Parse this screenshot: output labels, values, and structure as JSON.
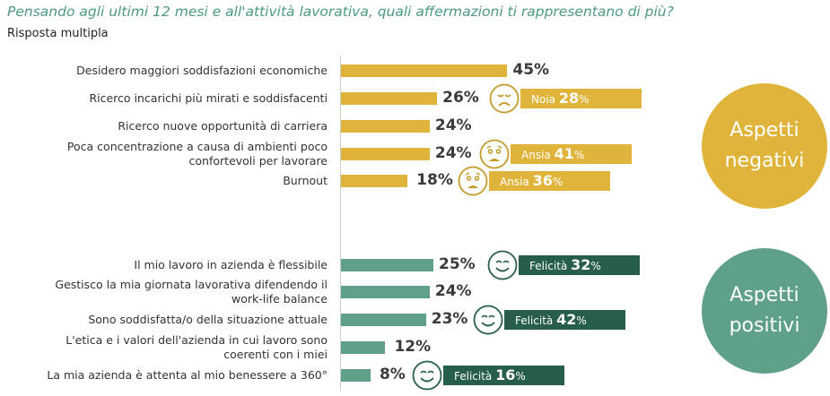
{
  "header": {
    "title": "Pensando agli ultimi 12 mesi e all'attività lavorativa, quali affermazioni ti rappresentano di più?",
    "subtitle": "Risposta multipla"
  },
  "colors": {
    "negative": "#E0B43A",
    "positive": "#5FA088",
    "positive_badge": "#265E4A",
    "title": "#4C9A80"
  },
  "groups": {
    "negative": "Aspetti\nnegativi",
    "positive": "Aspetti\npositivi"
  },
  "chart_data": {
    "type": "bar",
    "orientation": "horizontal",
    "xlim": [
      0,
      45
    ],
    "categories": [
      "Desidero maggiori soddisfazioni economiche",
      "Ricerco incarichi più mirati e soddisfacenti",
      "Ricerco nuove opportunità di carriera",
      "Poca concentrazione a causa di ambienti poco confortevoli per lavorare",
      "Burnout",
      "Il mio lavoro in azienda è flessibile",
      "Gestisco la mia giornata lavorativa difendendo il work-life balance",
      "Sono soddisfatta/o della situazione attuale",
      "L'etica e i valori dell'azienda in cui lavoro sono coerenti con i miei",
      "La mia azienda è attenta al mio benessere a 360°"
    ],
    "values": [
      45,
      26,
      24,
      24,
      18,
      25,
      24,
      23,
      12,
      8
    ],
    "value_labels": [
      "45%",
      "26%",
      "24%",
      "24%",
      "18%",
      "25%",
      "24%",
      "23%",
      "12%",
      "8%"
    ],
    "group": [
      "negative",
      "negative",
      "negative",
      "negative",
      "negative",
      "positive",
      "positive",
      "positive",
      "positive",
      "positive"
    ],
    "emotions": [
      null,
      {
        "label": "Noia",
        "value": "28",
        "icon": "sad-face-icon"
      },
      null,
      {
        "label": "Ansia",
        "value": "41",
        "icon": "anxious-face-icon"
      },
      {
        "label": "Ansia",
        "value": "36",
        "icon": "anxious-face-icon"
      },
      {
        "label": "Felicità",
        "value": "32",
        "icon": "smiling-face-icon"
      },
      null,
      {
        "label": "Felicità",
        "value": "42",
        "icon": "smiling-face-icon"
      },
      null,
      {
        "label": "Felicità",
        "value": "16",
        "icon": "smiling-face-icon"
      }
    ]
  }
}
